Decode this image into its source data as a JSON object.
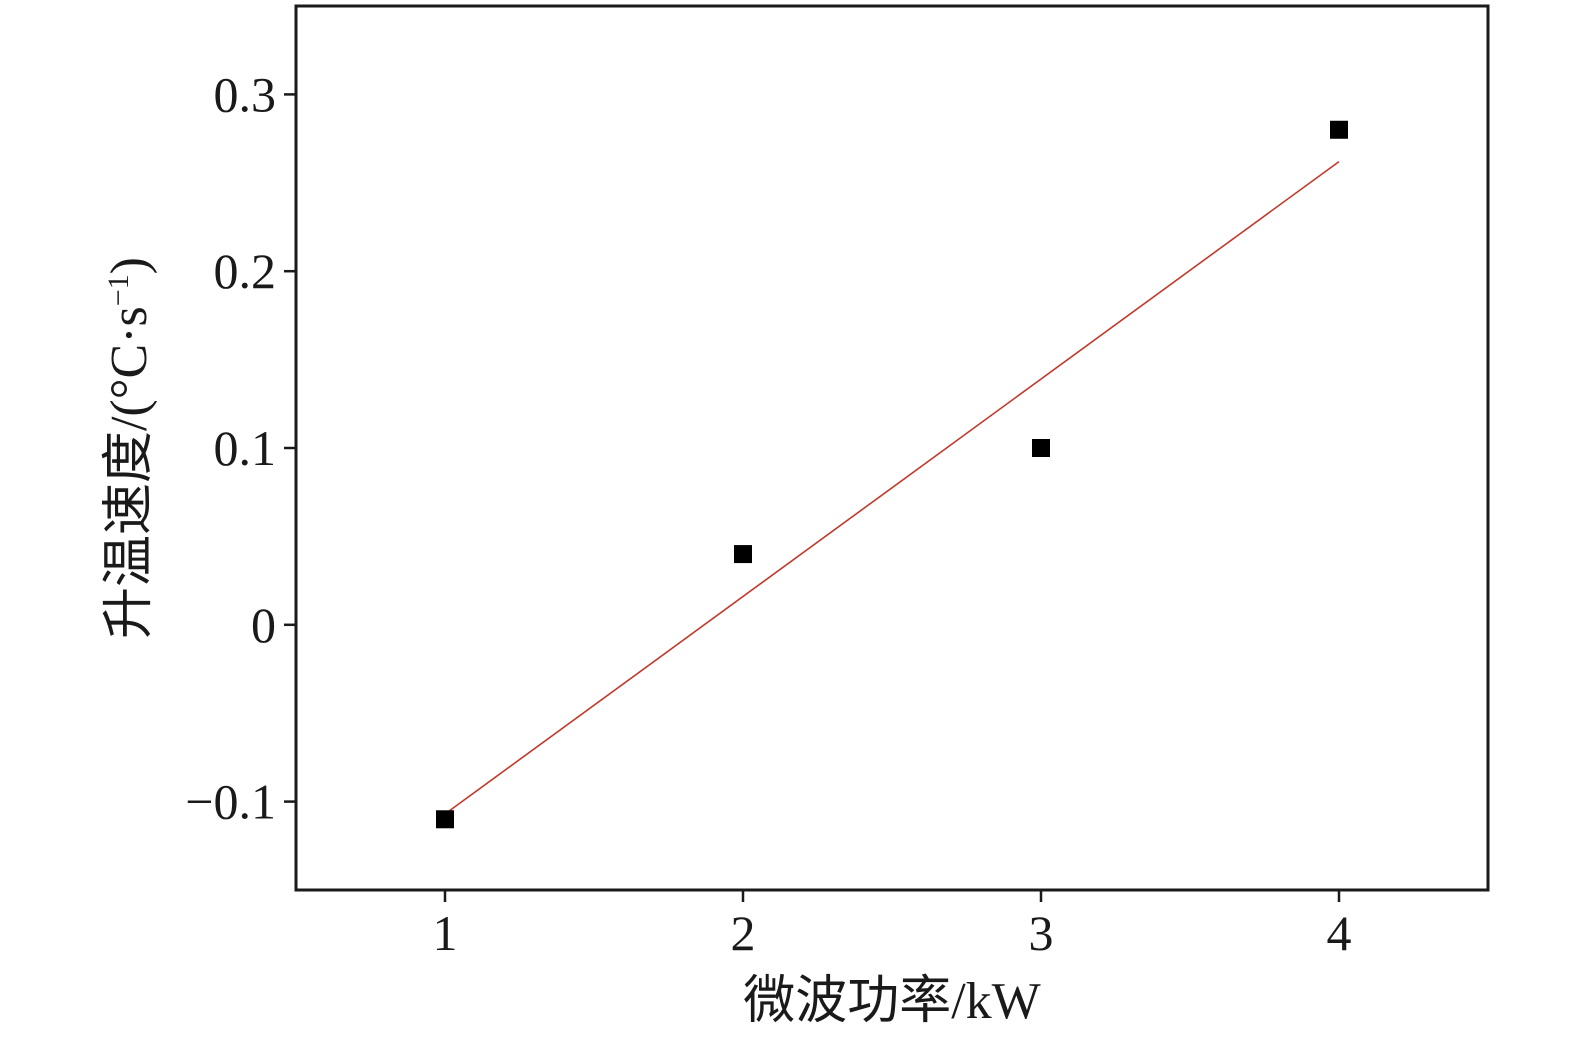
{
  "chart_data": {
    "type": "scatter",
    "xlabel": "微波功率/kW",
    "ylabel": {
      "main": "升温速度/(°C·s",
      "superscript": "−1",
      "close": ")"
    },
    "xlim": [
      0.5,
      4.5
    ],
    "ylim": [
      -0.15,
      0.35
    ],
    "x_ticks": [
      1,
      2,
      3,
      4
    ],
    "x_tick_labels": [
      "1",
      "2",
      "3",
      "4"
    ],
    "y_ticks": [
      -0.1,
      0,
      0.1,
      0.2,
      0.3
    ],
    "y_tick_labels": [
      "−0.1",
      "0",
      "0.1",
      "0.2",
      "0.3"
    ],
    "series": [
      {
        "marker": "square",
        "color": "#000000",
        "points": [
          {
            "x": 1,
            "y": -0.11
          },
          {
            "x": 2,
            "y": 0.04
          },
          {
            "x": 3,
            "y": 0.1
          },
          {
            "x": 4,
            "y": 0.28
          }
        ]
      }
    ],
    "fit_line": {
      "color": "#c0392b",
      "points": [
        {
          "x": 1,
          "y": -0.107
        },
        {
          "x": 4,
          "y": 0.262
        }
      ]
    },
    "grid": false
  }
}
